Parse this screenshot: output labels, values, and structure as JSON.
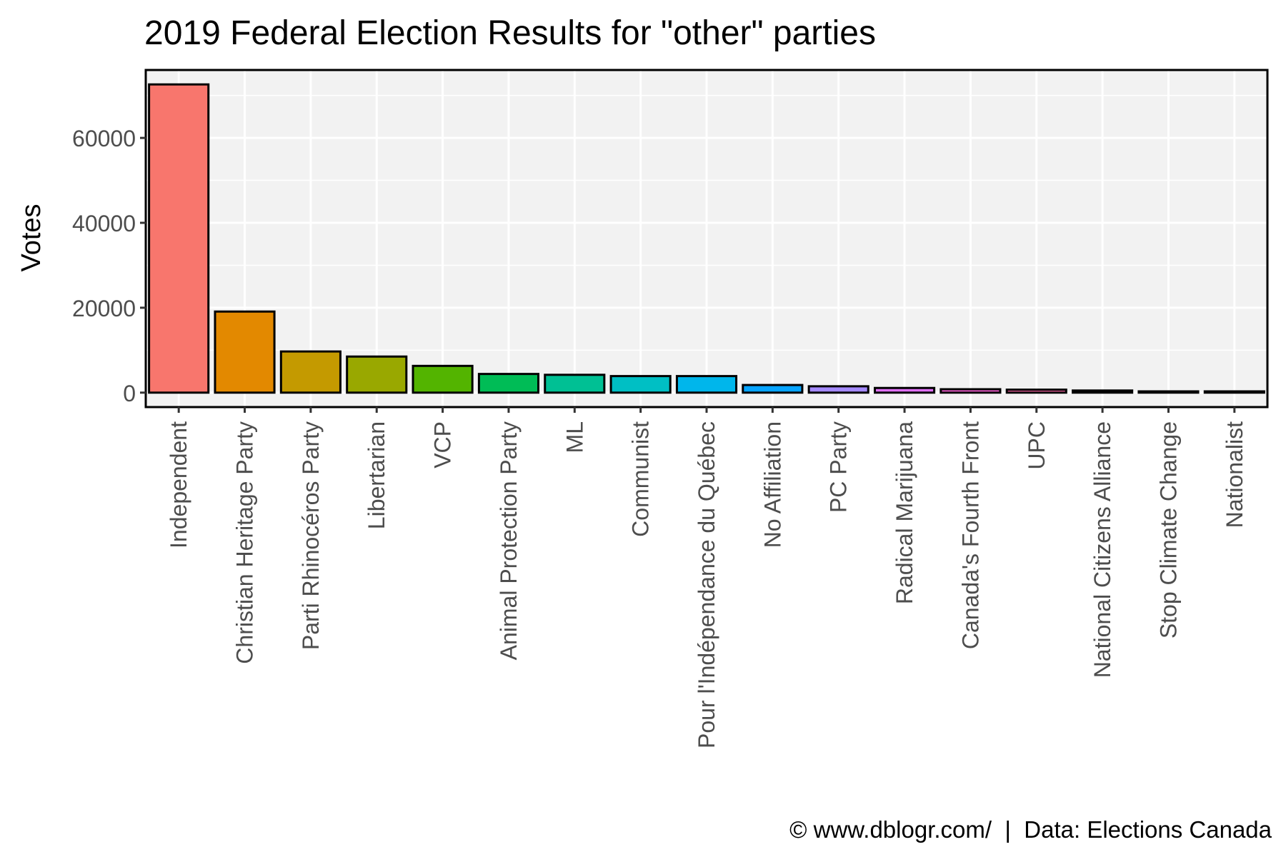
{
  "chart_data": {
    "type": "bar",
    "title": "2019 Federal Election Results for \"other\" parties",
    "xlabel": "",
    "ylabel": "Votes",
    "categories": [
      "Independent",
      "Christian Heritage Party",
      "Parti Rhinocéros Party",
      "Libertarian",
      "VCP",
      "Animal Protection Party",
      "ML",
      "Communist",
      "Pour l'Indépendance du Québec",
      "No Affiliation",
      "PC Party",
      "Radical Marijuana",
      "Canada's Fourth Front",
      "UPC",
      "National Citizens Alliance",
      "Stop Climate Change",
      "Nationalist"
    ],
    "values": [
      72600,
      19100,
      9700,
      8500,
      6300,
      4400,
      4200,
      3900,
      3900,
      1800,
      1500,
      1100,
      800,
      700,
      500,
      300,
      300
    ],
    "colors": [
      "#F8766D",
      "#E38900",
      "#C49A00",
      "#99A800",
      "#53B400",
      "#00BC56",
      "#00C094",
      "#00BFC4",
      "#00B6EB",
      "#06A4FF",
      "#A58AFF",
      "#DF70F8",
      "#FB61D7",
      "#FF66A8",
      "#F8766D",
      "#E38900",
      "#C49A00"
    ],
    "yticks": [
      0,
      20000,
      40000,
      60000
    ],
    "ylim": [
      -3400,
      76000
    ],
    "grid": true,
    "legend": "none",
    "panel_background": "#F2F2F2",
    "grid_color": "#FFFFFF"
  },
  "caption": "© www.dblogr.com/  |  Data: Elections Canada"
}
